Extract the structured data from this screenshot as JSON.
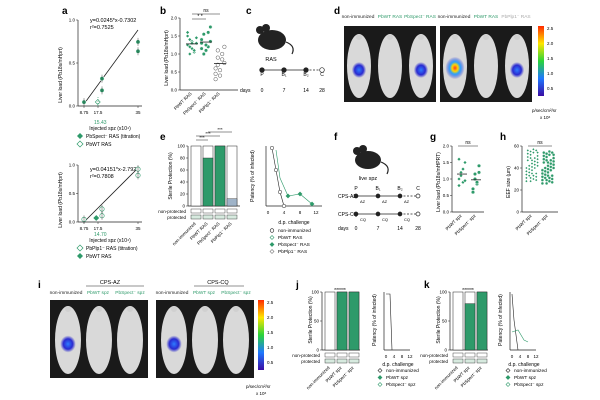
{
  "panels": {
    "a": {
      "letter": "a",
      "top": {
        "equation": "y=0.0245*x-0.7302",
        "r2": "r²=0.7525",
        "ylabel": "Liver load (Pb18s/mHprt)",
        "xlabel": "Injected spz (x10⁴)",
        "xticks": [
          "8.75",
          "17.5",
          "35"
        ],
        "yticks": [
          "0.0",
          "0.5",
          "1.0"
        ],
        "annotation": "15.43",
        "legend": [
          "PbSpect⁻ RAS (titration)",
          "PbWT RAS"
        ],
        "points": [
          [
            8.75,
            0.05
          ],
          [
            17.5,
            0.2
          ],
          [
            17.5,
            0.35
          ],
          [
            35,
            0.7
          ],
          [
            35,
            0.82
          ]
        ],
        "wt_point": [
          15.43,
          0.0
        ]
      },
      "bottom": {
        "equation": "y=0.04151*x-2.792",
        "r2": "r²=0.7808",
        "ylabel": "Liver load (Pb18s/mHprt)",
        "xlabel": "Injected spz (x10⁴)",
        "xticks": [
          "8.75",
          "17.5",
          "35"
        ],
        "yticks": [
          "0.0",
          "0.5",
          "1.0"
        ],
        "annotation": "14.70",
        "legend": [
          "PbPlp1⁻ RAS (titration)",
          "PbWT RAS"
        ],
        "points": [
          [
            8.75,
            0.05
          ],
          [
            17.5,
            0.12
          ],
          [
            17.5,
            0.25
          ],
          [
            35,
            0.9
          ],
          [
            35,
            1.02
          ]
        ],
        "wt_point": [
          14.7,
          0.0
        ]
      }
    },
    "b": {
      "letter": "b",
      "ylabel": "Liver load (Pb18s/mHprt)",
      "ns": "ns",
      "stars": "* *",
      "groups": [
        "PbWT RAS",
        "PbSpect⁻ RAS",
        "PbPlp1⁻ RAS"
      ],
      "yticks": [
        "0.0",
        "0.5",
        "1.0",
        "1.5",
        "2.0"
      ],
      "values": [
        [
          1.25,
          1.4,
          1.15,
          1.05,
          1.3,
          1.5,
          1.2,
          1.35,
          1.1,
          1.45,
          1.6,
          1.0,
          1.3
        ],
        [
          1.3,
          1.55,
          1.1,
          1.2,
          1.75,
          1.4,
          1.0,
          1.25,
          1.6,
          1.35,
          1.15
        ],
        [
          0.6,
          0.9,
          0.4,
          1.0,
          0.75,
          0.3,
          1.1,
          0.55,
          0.85,
          1.2,
          0.45,
          0.7
        ]
      ]
    },
    "c": {
      "letter": "c",
      "label": "RAS",
      "steps": [
        "P",
        "B₁",
        "B₂",
        "C"
      ],
      "days_label": "days",
      "days": [
        "0",
        "7",
        "14",
        "28"
      ]
    },
    "d": {
      "letter": "d",
      "group1": [
        "non-immunized",
        "PbWT RAS",
        "PbSpect⁻ RAS"
      ],
      "group2": [
        "non-immunized",
        "PbWT RAS",
        "PbPlp1⁻ RAS"
      ],
      "colorbar_ticks": [
        "2.5",
        "2.0",
        "1.5",
        "1.0",
        "0.5"
      ],
      "colorbar_unit": "p/sec/cm²/sr",
      "colorbar_scale": "x 10⁶"
    },
    "e": {
      "letter": "e",
      "ylabel": "Sterile Protection (%)",
      "yticks": [
        "0",
        "20",
        "40",
        "60",
        "80",
        "100"
      ],
      "stars": [
        "***",
        "***",
        "***"
      ],
      "bar_groups": [
        "non-immunized",
        "PbWT RAS",
        "PbSpect⁻ RAS",
        "PbPlp1⁻ RAS"
      ],
      "bar_values": [
        0,
        80,
        100,
        12
      ],
      "rows": [
        "non-protected",
        "protected"
      ],
      "curve": {
        "ylabel": "Patency (% of infected)",
        "xlabel": "d.p. challenge",
        "xticks": [
          "0",
          "4",
          "8",
          "12"
        ],
        "legend": [
          "non-immunized",
          "PbWT RAS",
          "PbSpect⁻ RAS",
          "PbPlp1⁻ RAS"
        ]
      }
    },
    "f": {
      "letter": "f",
      "label": "live spz",
      "cps_az": "CPS-AZ",
      "cps_cq": "CPS-CQ",
      "drug_az": "AZ",
      "drug_cq": "CQ",
      "steps": [
        "P",
        "B₁",
        "B₂",
        "C"
      ],
      "days_label": "days",
      "days": [
        "0",
        "7",
        "14",
        "28"
      ]
    },
    "g": {
      "letter": "g",
      "ylabel": "Liver load (Pb18s/mHPRT)",
      "ns": "ns",
      "yticks": [
        "0.0",
        "0.5",
        "1.0",
        "1.5",
        "2.0"
      ],
      "groups": [
        "PbWT spz",
        "PbSpect⁻ spz"
      ],
      "values": [
        [
          1.0,
          1.2,
          0.9,
          1.5,
          0.8,
          1.1,
          1.3,
          0.95,
          1.6
        ],
        [
          0.7,
          1.0,
          0.85,
          1.4,
          0.6,
          1.15,
          0.9,
          1.2
        ]
      ]
    },
    "h": {
      "letter": "h",
      "ylabel": "EEF size (µm)",
      "ns": "ns",
      "yticks": [
        "0",
        "20",
        "40",
        "60"
      ],
      "groups": [
        "PbWT spz",
        "PbSpect⁻ spz"
      ]
    },
    "i": {
      "letter": "i",
      "cps_az": "CPS-AZ",
      "cps_cq": "CPS-CQ",
      "group1": [
        "non-immunized",
        "PbWT spz",
        "PbSpect⁻ spz"
      ],
      "group2": [
        "non-immunized",
        "PbWT spz",
        "PbSpect⁻ spz"
      ],
      "colorbar_ticks": [
        "2.5",
        "2.0",
        "1.5",
        "1.0",
        "0.5"
      ],
      "colorbar_unit": "p/sec/cm²/sr",
      "colorbar_scale": "x 10⁶"
    },
    "j": {
      "letter": "j",
      "ylabel": "Sterile Protection (%)",
      "stars": "******",
      "yticks": [
        "0",
        "50",
        "100"
      ],
      "bar_groups": [
        "non-immunized",
        "PbWT spz",
        "PbSpect⁻ spz"
      ],
      "bar_values": [
        0,
        100,
        100
      ],
      "rows": [
        "non-protected",
        "protected"
      ],
      "curve": {
        "ylabel": "Patency (% of infected)",
        "xlabel": "d.p. challenge",
        "xticks": [
          "0",
          "4",
          "8",
          "12"
        ],
        "legend": [
          "non-immunized",
          "PbWT spz",
          "PbSpect⁻ spz"
        ]
      }
    },
    "k": {
      "letter": "k",
      "ylabel": "Sterile Protection (%)",
      "stars": "******",
      "yticks": [
        "0",
        "50",
        "100"
      ],
      "bar_groups": [
        "non-immunized",
        "PbWT spz",
        "PbSpect⁻ spz"
      ],
      "bar_values": [
        0,
        80,
        100
      ],
      "rows": [
        "non-protected",
        "protected"
      ],
      "curve": {
        "ylabel": "Patency (% of infected)",
        "xlabel": "d.p. challenge",
        "xticks": [
          "0",
          "4",
          "8",
          "12"
        ],
        "legend": [
          "non-immunized",
          "PbWT spz",
          "PbSpect⁻ spz"
        ]
      }
    }
  },
  "chart_data": [
    {
      "type": "scatter",
      "title": "a (top)",
      "xlabel": "Injected spz (x10⁴)",
      "ylabel": "Liver load (Pb18s/mHprt)",
      "x": [
        8.75,
        17.5,
        17.5,
        35,
        35
      ],
      "y": [
        0.05,
        0.2,
        0.35,
        0.7,
        0.82
      ],
      "fit": "y=0.0245*x-0.7302"
    },
    {
      "type": "scatter",
      "title": "a (bottom)",
      "xlabel": "Injected spz (x10⁴)",
      "ylabel": "Liver load (Pb18s/mHprt)",
      "x": [
        8.75,
        17.5,
        17.5,
        35,
        35
      ],
      "y": [
        0.05,
        0.12,
        0.25,
        0.9,
        1.02
      ],
      "fit": "y=0.04151*x-2.792"
    },
    {
      "type": "bar",
      "title": "e",
      "categories": [
        "non-immunized",
        "PbWT RAS",
        "PbSpect⁻ RAS",
        "PbPlp1⁻ RAS"
      ],
      "values": [
        0,
        80,
        100,
        12
      ],
      "ylabel": "Sterile Protection (%)",
      "ylim": [
        0,
        100
      ]
    },
    {
      "type": "bar",
      "title": "j",
      "categories": [
        "non-immunized",
        "PbWT spz",
        "PbSpect⁻ spz"
      ],
      "values": [
        0,
        100,
        100
      ],
      "ylabel": "Sterile Protection (%)",
      "ylim": [
        0,
        100
      ]
    },
    {
      "type": "bar",
      "title": "k",
      "categories": [
        "non-immunized",
        "PbWT spz",
        "PbSpect⁻ spz"
      ],
      "values": [
        0,
        80,
        100
      ],
      "ylabel": "Sterile Protection (%)",
      "ylim": [
        0,
        100
      ]
    }
  ],
  "colors": {
    "green": "#2e9a6a",
    "dark": "#222222",
    "gray": "#888888",
    "light_gray": "#cccccc"
  }
}
